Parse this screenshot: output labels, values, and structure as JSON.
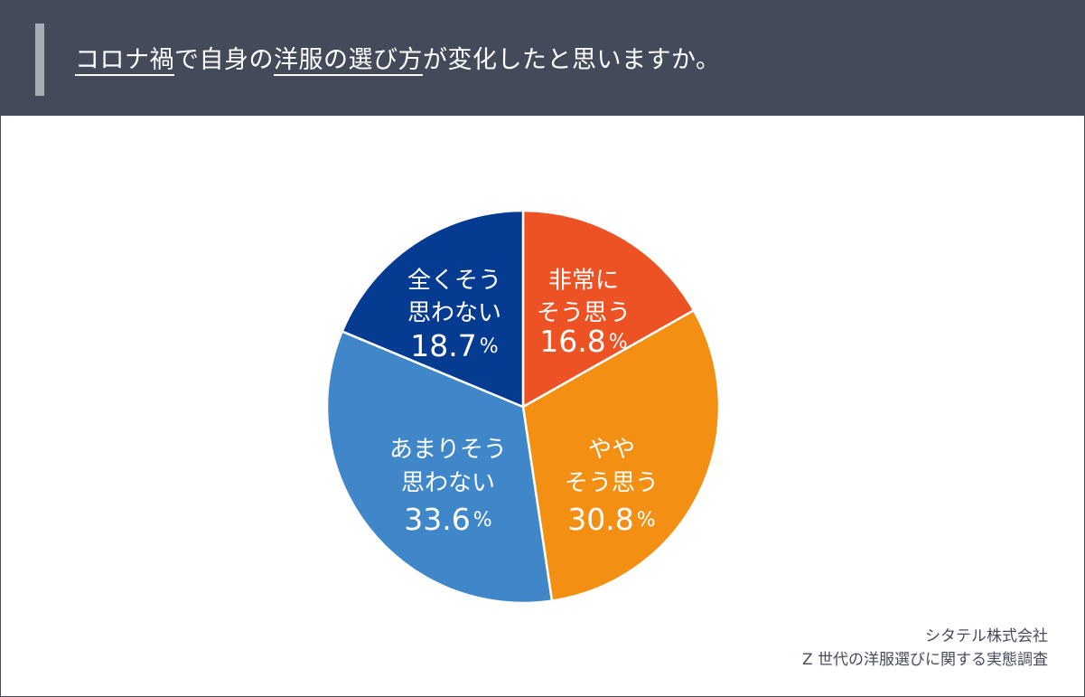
{
  "header": {
    "title_parts": [
      {
        "text": "コロナ禍",
        "underline": true
      },
      {
        "text": "で自身の",
        "underline": false
      },
      {
        "text": "洋服の選び方",
        "underline": true
      },
      {
        "text": "が変化したと思いますか。",
        "underline": false
      }
    ]
  },
  "chart_data": {
    "type": "pie",
    "title": "コロナ禍で自身の洋服の選び方が変化したと思いますか。",
    "start_angle_deg": 0,
    "direction": "clockwise",
    "slices": [
      {
        "label_lines": [
          "非常に",
          "そう思う"
        ],
        "value": 16.8,
        "display": "16.8",
        "color": "#ec5223"
      },
      {
        "label_lines": [
          "やや",
          "そう思う"
        ],
        "value": 30.8,
        "display": "30.8",
        "color": "#f39013"
      },
      {
        "label_lines": [
          "あまりそう",
          "思わない"
        ],
        "value": 33.6,
        "display": "33.6",
        "color": "#3f87c9"
      },
      {
        "label_lines": [
          "全くそう",
          "思わない"
        ],
        "value": 18.7,
        "display": "18.7",
        "color": "#053b91"
      }
    ],
    "percent_sign": "%"
  },
  "source": {
    "line1": "シタテル株式会社",
    "line2": "Z 世代の洋服選びに関する実態調査"
  }
}
